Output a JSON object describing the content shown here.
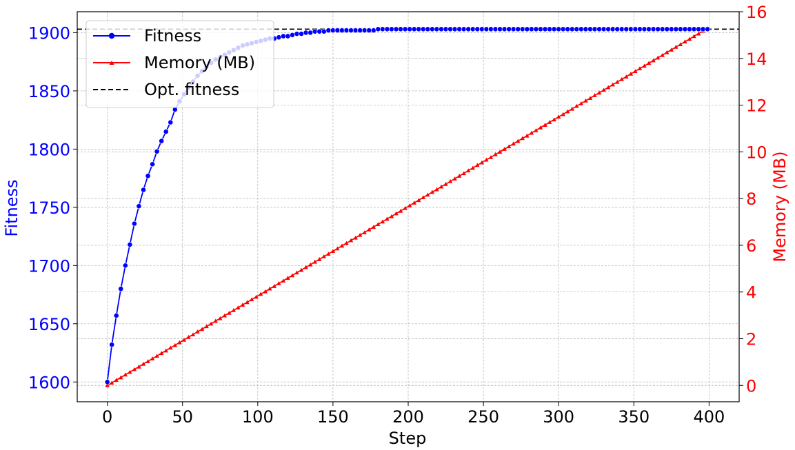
{
  "chart_data": {
    "type": "line",
    "xlabel": "Step",
    "ylabel_left": "Fitness",
    "ylabel_right": "Memory (MB)",
    "xlim": [
      -20,
      420
    ],
    "ylim_left": [
      1583,
      1918
    ],
    "ylim_right": [
      -0.7,
      16.0
    ],
    "x_ticks": [
      0,
      50,
      100,
      150,
      200,
      250,
      300,
      350,
      400
    ],
    "y_left_ticks": [
      1600,
      1650,
      1700,
      1750,
      1800,
      1850,
      1900
    ],
    "y_right_ticks": [
      0,
      2,
      4,
      6,
      8,
      10,
      12,
      14,
      16
    ],
    "grid": true,
    "legend_position": "top-left",
    "reference_line": {
      "name": "Opt. fitness",
      "value": 1903,
      "axis": "left"
    },
    "series": [
      {
        "name": "Fitness",
        "axis": "left",
        "marker": "circle",
        "x": [
          0,
          3,
          6,
          9,
          12,
          15,
          18,
          21,
          24,
          27,
          30,
          33,
          36,
          39,
          42,
          45,
          48,
          51,
          54,
          57,
          60,
          63,
          66,
          69,
          72,
          75,
          78,
          81,
          84,
          87,
          90,
          93,
          96,
          99,
          102,
          105,
          108,
          111,
          114,
          117,
          120,
          123,
          126,
          129,
          132,
          135,
          138,
          141,
          144,
          147,
          150,
          153,
          156,
          159,
          162,
          165,
          168,
          171,
          174,
          177,
          180,
          183,
          186,
          189,
          192,
          195,
          198,
          201,
          204,
          207,
          210,
          213,
          216,
          219,
          222,
          225,
          228,
          231,
          234,
          237,
          240,
          243,
          246,
          249,
          252,
          255,
          258,
          261,
          264,
          267,
          270,
          273,
          276,
          279,
          282,
          285,
          288,
          291,
          294,
          297,
          300,
          303,
          306,
          309,
          312,
          315,
          318,
          321,
          324,
          327,
          330,
          333,
          336,
          339,
          342,
          345,
          348,
          351,
          354,
          357,
          360,
          363,
          366,
          369,
          372,
          375,
          378,
          381,
          384,
          387,
          390,
          393,
          396,
          399
        ],
        "y": [
          1600,
          1632,
          1657,
          1680,
          1700,
          1718,
          1736,
          1751,
          1765,
          1777,
          1787,
          1798,
          1807,
          1815,
          1823,
          1834,
          1841,
          1847,
          1853,
          1858,
          1863,
          1867,
          1871,
          1874,
          1877,
          1879,
          1881,
          1883,
          1885,
          1887,
          1889,
          1890,
          1891,
          1892,
          1893,
          1894,
          1895,
          1895,
          1896,
          1897,
          1897,
          1898,
          1899,
          1899,
          1900,
          1900,
          1901,
          1901,
          1901,
          1902,
          1902,
          1902,
          1902,
          1902,
          1902,
          1902,
          1902,
          1902,
          1902,
          1902,
          1903,
          1903,
          1903,
          1903,
          1903,
          1903,
          1903,
          1903,
          1903,
          1903,
          1903,
          1903,
          1903,
          1903,
          1903,
          1903,
          1903,
          1903,
          1903,
          1903,
          1903,
          1903,
          1903,
          1903,
          1903,
          1903,
          1903,
          1903,
          1903,
          1903,
          1903,
          1903,
          1903,
          1903,
          1903,
          1903,
          1903,
          1903,
          1903,
          1903,
          1903,
          1903,
          1903,
          1903,
          1903,
          1903,
          1903,
          1903,
          1903,
          1903,
          1903,
          1903,
          1903,
          1903,
          1903,
          1903,
          1903,
          1903,
          1903,
          1903,
          1903,
          1903,
          1903,
          1903,
          1903,
          1903,
          1903,
          1903,
          1903,
          1903,
          1903,
          1903,
          1903,
          1903
        ]
      },
      {
        "name": "Memory (MB)",
        "axis": "right",
        "marker": "triangle",
        "x": [
          0,
          3,
          6,
          9,
          12,
          15,
          18,
          21,
          24,
          27,
          30,
          33,
          36,
          39,
          42,
          45,
          48,
          51,
          54,
          57,
          60,
          63,
          66,
          69,
          72,
          75,
          78,
          81,
          84,
          87,
          90,
          93,
          96,
          99,
          102,
          105,
          108,
          111,
          114,
          117,
          120,
          123,
          126,
          129,
          132,
          135,
          138,
          141,
          144,
          147,
          150,
          153,
          156,
          159,
          162,
          165,
          168,
          171,
          174,
          177,
          180,
          183,
          186,
          189,
          192,
          195,
          198,
          201,
          204,
          207,
          210,
          213,
          216,
          219,
          222,
          225,
          228,
          231,
          234,
          237,
          240,
          243,
          246,
          249,
          252,
          255,
          258,
          261,
          264,
          267,
          270,
          273,
          276,
          279,
          282,
          285,
          288,
          291,
          294,
          297,
          300,
          303,
          306,
          309,
          312,
          315,
          318,
          321,
          324,
          327,
          330,
          333,
          336,
          339,
          342,
          345,
          348,
          351,
          354,
          357,
          360,
          363,
          366,
          369,
          372,
          375,
          378,
          381,
          384,
          387,
          390,
          393,
          396,
          399
        ],
        "y": [
          0.0,
          0.11,
          0.23,
          0.34,
          0.46,
          0.57,
          0.69,
          0.8,
          0.92,
          1.03,
          1.15,
          1.26,
          1.38,
          1.49,
          1.61,
          1.72,
          1.84,
          1.95,
          2.07,
          2.18,
          2.3,
          2.41,
          2.53,
          2.64,
          2.76,
          2.87,
          2.99,
          3.1,
          3.22,
          3.33,
          3.45,
          3.56,
          3.68,
          3.79,
          3.91,
          4.02,
          4.14,
          4.25,
          4.37,
          4.48,
          4.6,
          4.71,
          4.83,
          4.94,
          5.06,
          5.17,
          5.29,
          5.4,
          5.52,
          5.63,
          5.75,
          5.86,
          5.98,
          6.09,
          6.21,
          6.32,
          6.44,
          6.55,
          6.67,
          6.78,
          6.9,
          7.01,
          7.13,
          7.24,
          7.36,
          7.47,
          7.59,
          7.7,
          7.82,
          7.93,
          8.05,
          8.16,
          8.28,
          8.39,
          8.51,
          8.62,
          8.74,
          8.85,
          8.97,
          9.08,
          9.2,
          9.31,
          9.43,
          9.54,
          9.66,
          9.77,
          9.89,
          10.0,
          10.12,
          10.23,
          10.35,
          10.46,
          10.58,
          10.69,
          10.81,
          10.92,
          11.04,
          11.15,
          11.27,
          11.38,
          11.5,
          11.61,
          11.73,
          11.84,
          11.96,
          12.07,
          12.19,
          12.3,
          12.42,
          12.53,
          12.65,
          12.76,
          12.88,
          12.99,
          13.11,
          13.22,
          13.34,
          13.45,
          13.57,
          13.68,
          13.8,
          13.91,
          14.03,
          14.14,
          14.26,
          14.37,
          14.49,
          14.6,
          14.72,
          14.83,
          14.95,
          15.06,
          15.18,
          15.29
        ]
      }
    ],
    "colors": {
      "fitness": "#0000ff",
      "memory": "#ff0000",
      "optimal": "#000000",
      "grid": "#b0b0b0"
    }
  }
}
